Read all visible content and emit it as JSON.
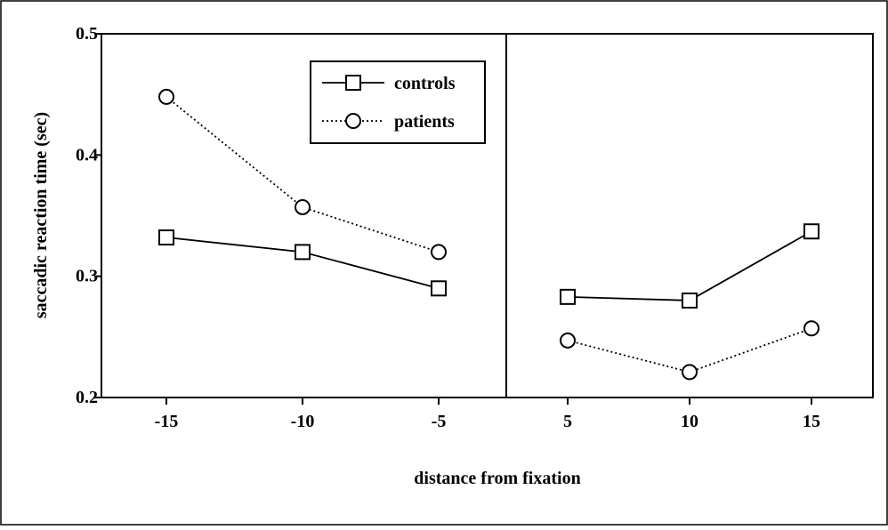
{
  "chart_data": {
    "type": "line",
    "xlabel": "distance from fixation",
    "ylabel": "saccadic reaction time (sec)",
    "ylim": [
      0.2,
      0.5
    ],
    "y_ticks": [
      "0.2",
      "0.3",
      "0.4",
      "0.5"
    ],
    "x_ticks": [
      "-15",
      "-10",
      "-5",
      "5",
      "10",
      "15"
    ],
    "grid": false,
    "legend_position": "top-left",
    "panels": [
      {
        "id": "left",
        "x": [
          -15,
          -10,
          -5
        ],
        "series": [
          {
            "name": "controls",
            "values": [
              0.332,
              0.32,
              0.29
            ]
          },
          {
            "name": "patients",
            "values": [
              0.448,
              0.357,
              0.32
            ]
          }
        ]
      },
      {
        "id": "right",
        "x": [
          5,
          10,
          15
        ],
        "series": [
          {
            "name": "controls",
            "values": [
              0.283,
              0.28,
              0.337
            ]
          },
          {
            "name": "patients",
            "values": [
              0.247,
              0.221,
              0.257
            ]
          }
        ]
      }
    ],
    "series_styles": [
      {
        "name": "controls",
        "marker": "square",
        "line": "solid",
        "color": "#000000"
      },
      {
        "name": "patients",
        "marker": "circle",
        "line": "dotted",
        "color": "#000000"
      }
    ]
  }
}
